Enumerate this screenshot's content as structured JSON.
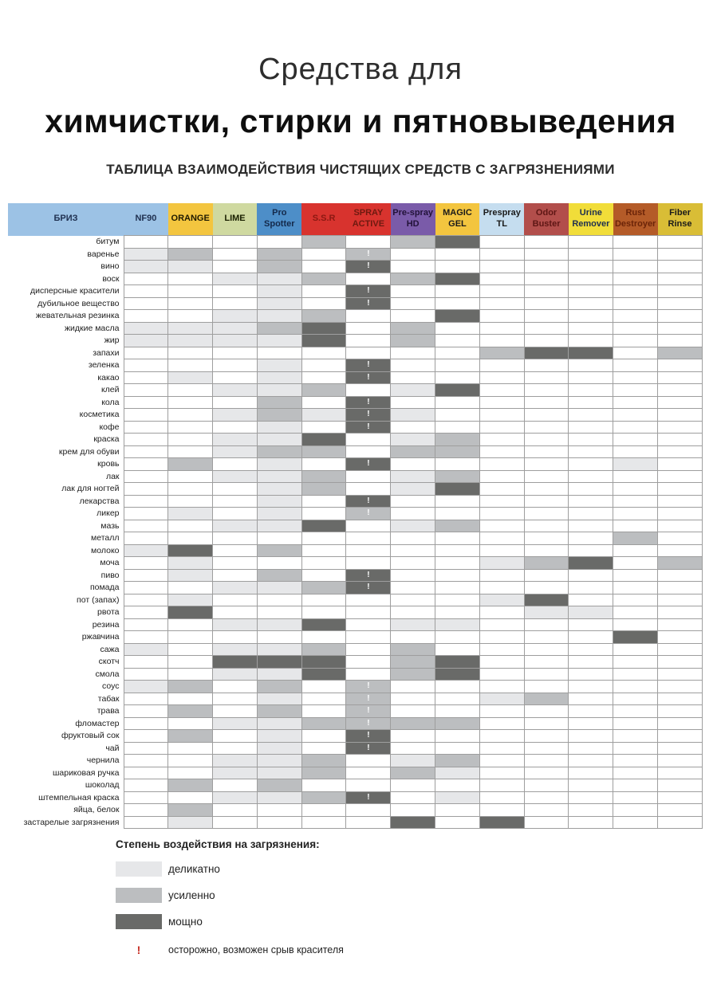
{
  "title": {
    "line1": "Средства для",
    "line2": "химчистки, стирки и пятновыведения"
  },
  "subtitle": "ТАБЛИЦА ВЗАИМОДЕЙСТВИЯ ЧИСТЯЩИХ СРЕДСТВ С ЗАГРЯЗНЕНИЯМИ",
  "levels": {
    "1": "#e6e7e9",
    "2": "#bcbec0",
    "3": "#696a68"
  },
  "caution_color": "#c72f25",
  "table": {
    "brand_header": {
      "label": "БРИЗ",
      "bg": "#9cc2e5",
      "fg": "#1f3050"
    },
    "columns": [
      {
        "label": "NF90",
        "bg": "#9cc2e5",
        "fg": "#1f3050"
      },
      {
        "label": "ORANGE",
        "bg": "#f3c53f",
        "fg": "#1f1a00"
      },
      {
        "label": "LIME",
        "bg": "#cfd9a0",
        "fg": "#1a2000"
      },
      {
        "label": "Pro Spotter",
        "bg": "#4d8ec8",
        "fg": "#14294a"
      },
      {
        "label": "S.S.R",
        "bg": "#d8332e",
        "fg": "#8b1812"
      },
      {
        "label": "SPRAY ACTIVE",
        "bg": "#d8332e",
        "fg": "#6e1a10"
      },
      {
        "label": "Pre-spray HD",
        "bg": "#7a5ba9",
        "fg": "#221239"
      },
      {
        "label": "MAGIC GEL",
        "bg": "#f3c53f",
        "fg": "#1a1a1a"
      },
      {
        "label": "Prespray TL",
        "bg": "#c5ddef",
        "fg": "#1a1a1a"
      },
      {
        "label": "Odor Buster",
        "bg": "#b24e4b",
        "fg": "#5e1614"
      },
      {
        "label": "Urine Remover",
        "bg": "#f1dd39",
        "fg": "#1f3050"
      },
      {
        "label": "Rust Destroyer",
        "bg": "#b45b28",
        "fg": "#6b2408"
      },
      {
        "label": "Fiber Rinse",
        "bg": "#d9bd36",
        "fg": "#1a1a1a"
      }
    ],
    "rows": [
      {
        "label": "битум",
        "cells": [
          0,
          0,
          0,
          0,
          2,
          0,
          2,
          3,
          0,
          0,
          0,
          0,
          0
        ],
        "bang": false
      },
      {
        "label": "варенье",
        "cells": [
          1,
          2,
          0,
          2,
          0,
          2,
          0,
          0,
          0,
          0,
          0,
          0,
          0
        ],
        "bang": true
      },
      {
        "label": "вино",
        "cells": [
          1,
          1,
          0,
          2,
          0,
          3,
          0,
          0,
          0,
          0,
          0,
          0,
          0
        ],
        "bang": true
      },
      {
        "label": "воск",
        "cells": [
          0,
          0,
          1,
          1,
          2,
          0,
          2,
          3,
          0,
          0,
          0,
          0,
          0
        ],
        "bang": false
      },
      {
        "label": "дисперсные красители",
        "cells": [
          0,
          0,
          0,
          1,
          0,
          3,
          0,
          0,
          0,
          0,
          0,
          0,
          0
        ],
        "bang": true
      },
      {
        "label": "дубильное вещество",
        "cells": [
          0,
          0,
          0,
          1,
          0,
          3,
          0,
          0,
          0,
          0,
          0,
          0,
          0
        ],
        "bang": true
      },
      {
        "label": "жевательная резинка",
        "cells": [
          0,
          0,
          1,
          1,
          2,
          0,
          0,
          3,
          0,
          0,
          0,
          0,
          0
        ],
        "bang": false
      },
      {
        "label": "жидкие масла",
        "cells": [
          1,
          1,
          1,
          2,
          3,
          0,
          2,
          0,
          0,
          0,
          0,
          0,
          0
        ],
        "bang": false
      },
      {
        "label": "жир",
        "cells": [
          1,
          1,
          1,
          1,
          3,
          0,
          2,
          0,
          0,
          0,
          0,
          0,
          0
        ],
        "bang": false
      },
      {
        "label": "запахи",
        "cells": [
          0,
          0,
          0,
          0,
          0,
          0,
          0,
          0,
          2,
          3,
          3,
          0,
          2
        ],
        "bang": false
      },
      {
        "label": "зеленка",
        "cells": [
          0,
          0,
          0,
          1,
          0,
          3,
          0,
          0,
          0,
          0,
          0,
          0,
          0
        ],
        "bang": true
      },
      {
        "label": "какао",
        "cells": [
          0,
          1,
          0,
          1,
          0,
          3,
          0,
          0,
          0,
          0,
          0,
          0,
          0
        ],
        "bang": true
      },
      {
        "label": "клей",
        "cells": [
          0,
          0,
          1,
          1,
          2,
          0,
          1,
          3,
          0,
          0,
          0,
          0,
          0
        ],
        "bang": false
      },
      {
        "label": "кола",
        "cells": [
          0,
          0,
          0,
          2,
          0,
          3,
          0,
          0,
          0,
          0,
          0,
          0,
          0
        ],
        "bang": true
      },
      {
        "label": "косметика",
        "cells": [
          0,
          0,
          1,
          2,
          1,
          3,
          1,
          0,
          0,
          0,
          0,
          0,
          0
        ],
        "bang": true
      },
      {
        "label": "кофе",
        "cells": [
          0,
          0,
          0,
          1,
          0,
          3,
          0,
          0,
          0,
          0,
          0,
          0,
          0
        ],
        "bang": true
      },
      {
        "label": "краска",
        "cells": [
          0,
          0,
          1,
          1,
          3,
          0,
          1,
          2,
          0,
          0,
          0,
          0,
          0
        ],
        "bang": false
      },
      {
        "label": "крем для обуви",
        "cells": [
          0,
          0,
          1,
          2,
          2,
          0,
          2,
          2,
          0,
          0,
          0,
          0,
          0
        ],
        "bang": false
      },
      {
        "label": "кровь",
        "cells": [
          0,
          2,
          0,
          1,
          0,
          3,
          0,
          0,
          0,
          0,
          0,
          1,
          0
        ],
        "bang": true
      },
      {
        "label": "лак",
        "cells": [
          0,
          0,
          1,
          1,
          2,
          0,
          1,
          2,
          0,
          0,
          0,
          0,
          0
        ],
        "bang": false
      },
      {
        "label": "лак для ногтей",
        "cells": [
          0,
          0,
          0,
          1,
          2,
          0,
          1,
          3,
          0,
          0,
          0,
          0,
          0
        ],
        "bang": false
      },
      {
        "label": "лекарства",
        "cells": [
          0,
          0,
          0,
          1,
          0,
          3,
          0,
          0,
          0,
          0,
          0,
          0,
          0
        ],
        "bang": true
      },
      {
        "label": "ликер",
        "cells": [
          0,
          1,
          0,
          1,
          0,
          2,
          0,
          0,
          0,
          0,
          0,
          0,
          0
        ],
        "bang": true
      },
      {
        "label": "мазь",
        "cells": [
          0,
          0,
          1,
          1,
          3,
          0,
          1,
          2,
          0,
          0,
          0,
          0,
          0
        ],
        "bang": false
      },
      {
        "label": "металл",
        "cells": [
          0,
          0,
          0,
          0,
          0,
          0,
          0,
          0,
          0,
          0,
          0,
          2,
          0
        ],
        "bang": false
      },
      {
        "label": "молоко",
        "cells": [
          1,
          3,
          0,
          2,
          0,
          0,
          0,
          0,
          0,
          0,
          0,
          0,
          0
        ],
        "bang": false
      },
      {
        "label": "моча",
        "cells": [
          0,
          1,
          0,
          0,
          0,
          0,
          0,
          0,
          1,
          2,
          3,
          0,
          2
        ],
        "bang": false
      },
      {
        "label": "пиво",
        "cells": [
          0,
          1,
          0,
          2,
          0,
          3,
          0,
          0,
          0,
          0,
          0,
          0,
          0
        ],
        "bang": true
      },
      {
        "label": "помада",
        "cells": [
          0,
          0,
          1,
          1,
          2,
          3,
          0,
          0,
          0,
          0,
          0,
          0,
          0
        ],
        "bang": true
      },
      {
        "label": "пот (запах)",
        "cells": [
          0,
          1,
          0,
          0,
          0,
          0,
          0,
          0,
          1,
          3,
          0,
          0,
          0
        ],
        "bang": false
      },
      {
        "label": "рвота",
        "cells": [
          0,
          3,
          0,
          0,
          0,
          0,
          0,
          0,
          0,
          1,
          1,
          0,
          0
        ],
        "bang": false
      },
      {
        "label": "резина",
        "cells": [
          0,
          0,
          1,
          1,
          3,
          0,
          1,
          1,
          0,
          0,
          0,
          0,
          0
        ],
        "bang": false
      },
      {
        "label": "ржавчина",
        "cells": [
          0,
          0,
          0,
          0,
          0,
          0,
          0,
          0,
          0,
          0,
          0,
          3,
          0
        ],
        "bang": false
      },
      {
        "label": "сажа",
        "cells": [
          1,
          0,
          1,
          1,
          2,
          0,
          2,
          0,
          0,
          0,
          0,
          0,
          0
        ],
        "bang": false
      },
      {
        "label": "скотч",
        "cells": [
          0,
          0,
          3,
          3,
          3,
          0,
          2,
          3,
          0,
          0,
          0,
          0,
          0
        ],
        "bang": false
      },
      {
        "label": "смола",
        "cells": [
          0,
          0,
          1,
          1,
          3,
          0,
          2,
          3,
          0,
          0,
          0,
          0,
          0
        ],
        "bang": false
      },
      {
        "label": "соус",
        "cells": [
          1,
          2,
          0,
          2,
          0,
          2,
          0,
          0,
          0,
          0,
          0,
          0,
          0
        ],
        "bang": true
      },
      {
        "label": "табак",
        "cells": [
          0,
          0,
          0,
          1,
          0,
          2,
          0,
          0,
          1,
          2,
          0,
          0,
          0
        ],
        "bang": true
      },
      {
        "label": "трава",
        "cells": [
          0,
          2,
          0,
          2,
          0,
          2,
          0,
          0,
          0,
          0,
          0,
          0,
          0
        ],
        "bang": true
      },
      {
        "label": "фломастер",
        "cells": [
          0,
          0,
          1,
          1,
          2,
          2,
          2,
          2,
          0,
          0,
          0,
          0,
          0
        ],
        "bang": true
      },
      {
        "label": "фруктовый сок",
        "cells": [
          0,
          2,
          0,
          1,
          0,
          3,
          0,
          0,
          0,
          0,
          0,
          0,
          0
        ],
        "bang": true
      },
      {
        "label": "чай",
        "cells": [
          0,
          0,
          0,
          1,
          0,
          3,
          0,
          0,
          0,
          0,
          0,
          0,
          0
        ],
        "bang": true
      },
      {
        "label": "чернила",
        "cells": [
          0,
          0,
          1,
          1,
          2,
          0,
          1,
          2,
          0,
          0,
          0,
          0,
          0
        ],
        "bang": false
      },
      {
        "label": "шариковая ручка",
        "cells": [
          0,
          0,
          1,
          1,
          2,
          0,
          2,
          1,
          0,
          0,
          0,
          0,
          0
        ],
        "bang": false
      },
      {
        "label": "шоколад",
        "cells": [
          0,
          2,
          0,
          2,
          0,
          0,
          0,
          0,
          0,
          0,
          0,
          0,
          0
        ],
        "bang": false
      },
      {
        "label": "штемпельная краска",
        "cells": [
          0,
          0,
          1,
          1,
          2,
          3,
          0,
          1,
          0,
          0,
          0,
          0,
          0
        ],
        "bang": true
      },
      {
        "label": "яйца, белок",
        "cells": [
          0,
          2,
          0,
          0,
          0,
          0,
          0,
          0,
          0,
          0,
          0,
          0,
          0
        ],
        "bang": false
      },
      {
        "label": "застарелые загрязнения",
        "cells": [
          0,
          1,
          0,
          0,
          0,
          0,
          3,
          0,
          3,
          0,
          0,
          0,
          0
        ],
        "bang": false
      }
    ],
    "bang_column_index": 6,
    "bang_symbol": "!"
  },
  "legend": {
    "title": "Степень воздействия на загрязнения:",
    "items": [
      {
        "level": 1,
        "label": "деликатно"
      },
      {
        "level": 2,
        "label": "усиленно"
      },
      {
        "level": 3,
        "label": "мощно"
      }
    ],
    "caution_mark": "!",
    "caution_text": "осторожно, возможен срыв красителя"
  }
}
